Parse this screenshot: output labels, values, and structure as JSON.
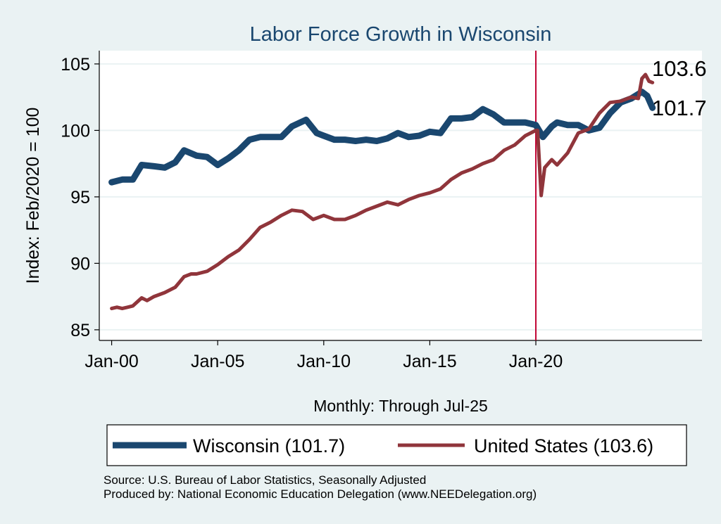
{
  "chart_data": {
    "type": "line",
    "title": "Labor Force Growth in Wisconsin",
    "xlabel": "Monthly: Through Jul-25",
    "ylabel": "Index: Feb/2020 = 100",
    "ylim": [
      84.2,
      106
    ],
    "xlim": [
      "1999-06",
      "2027-11"
    ],
    "yticks": [
      85,
      90,
      95,
      100,
      105
    ],
    "xticks": [
      {
        "date": "2000-01",
        "label": "Jan-00"
      },
      {
        "date": "2005-01",
        "label": "Jan-05"
      },
      {
        "date": "2010-01",
        "label": "Jan-10"
      },
      {
        "date": "2015-01",
        "label": "Jan-15"
      },
      {
        "date": "2020-01",
        "label": "Jan-20"
      }
    ],
    "grid": true,
    "reference_line": {
      "date": "2020-01",
      "color": "#c10534"
    },
    "legend_placement": "bottom",
    "end_labels": [
      "103.6",
      "101.7"
    ],
    "series": [
      {
        "name": "Wisconsin (101.7)",
        "color": "#1a476f",
        "points": [
          [
            "2000-01",
            96.1
          ],
          [
            "2000-07",
            96.3
          ],
          [
            "2001-01",
            96.3
          ],
          [
            "2001-06",
            97.4
          ],
          [
            "2002-01",
            97.3
          ],
          [
            "2002-07",
            97.2
          ],
          [
            "2003-01",
            97.6
          ],
          [
            "2003-06",
            98.5
          ],
          [
            "2004-01",
            98.1
          ],
          [
            "2004-07",
            98.0
          ],
          [
            "2005-01",
            97.4
          ],
          [
            "2005-07",
            97.9
          ],
          [
            "2006-01",
            98.5
          ],
          [
            "2006-07",
            99.3
          ],
          [
            "2007-01",
            99.5
          ],
          [
            "2007-07",
            99.5
          ],
          [
            "2008-01",
            99.5
          ],
          [
            "2008-07",
            100.3
          ],
          [
            "2009-03",
            100.8
          ],
          [
            "2009-09",
            99.8
          ],
          [
            "2010-01",
            99.6
          ],
          [
            "2010-07",
            99.3
          ],
          [
            "2011-01",
            99.3
          ],
          [
            "2011-07",
            99.2
          ],
          [
            "2012-01",
            99.3
          ],
          [
            "2012-07",
            99.2
          ],
          [
            "2013-01",
            99.4
          ],
          [
            "2013-07",
            99.8
          ],
          [
            "2014-01",
            99.5
          ],
          [
            "2014-07",
            99.6
          ],
          [
            "2015-01",
            99.9
          ],
          [
            "2015-07",
            99.8
          ],
          [
            "2016-01",
            100.9
          ],
          [
            "2016-07",
            100.9
          ],
          [
            "2017-01",
            101.0
          ],
          [
            "2017-07",
            101.6
          ],
          [
            "2018-01",
            101.2
          ],
          [
            "2018-07",
            100.6
          ],
          [
            "2019-01",
            100.6
          ],
          [
            "2019-07",
            100.6
          ],
          [
            "2020-01",
            100.4
          ],
          [
            "2020-05",
            99.5
          ],
          [
            "2020-10",
            100.3
          ],
          [
            "2021-01",
            100.6
          ],
          [
            "2021-07",
            100.4
          ],
          [
            "2022-01",
            100.4
          ],
          [
            "2022-07",
            100.0
          ],
          [
            "2023-01",
            100.2
          ],
          [
            "2023-07",
            101.3
          ],
          [
            "2024-01",
            102.1
          ],
          [
            "2024-07",
            102.4
          ],
          [
            "2025-01",
            102.9
          ],
          [
            "2025-04",
            102.6
          ],
          [
            "2025-07",
            101.7
          ]
        ]
      },
      {
        "name": "United States (103.6)",
        "color": "#90353b",
        "points": [
          [
            "2000-01",
            86.6
          ],
          [
            "2000-04",
            86.7
          ],
          [
            "2000-07",
            86.6
          ],
          [
            "2000-10",
            86.7
          ],
          [
            "2001-01",
            86.8
          ],
          [
            "2001-06",
            87.4
          ],
          [
            "2001-09",
            87.2
          ],
          [
            "2002-01",
            87.5
          ],
          [
            "2002-07",
            87.8
          ],
          [
            "2003-01",
            88.2
          ],
          [
            "2003-06",
            89.0
          ],
          [
            "2003-10",
            89.2
          ],
          [
            "2004-01",
            89.2
          ],
          [
            "2004-07",
            89.4
          ],
          [
            "2005-01",
            89.9
          ],
          [
            "2005-07",
            90.5
          ],
          [
            "2006-01",
            91.0
          ],
          [
            "2006-07",
            91.8
          ],
          [
            "2007-01",
            92.7
          ],
          [
            "2007-07",
            93.1
          ],
          [
            "2008-01",
            93.6
          ],
          [
            "2008-07",
            94.0
          ],
          [
            "2009-01",
            93.9
          ],
          [
            "2009-07",
            93.3
          ],
          [
            "2010-01",
            93.6
          ],
          [
            "2010-07",
            93.3
          ],
          [
            "2011-01",
            93.3
          ],
          [
            "2011-07",
            93.6
          ],
          [
            "2012-01",
            94.0
          ],
          [
            "2012-07",
            94.3
          ],
          [
            "2013-01",
            94.6
          ],
          [
            "2013-07",
            94.4
          ],
          [
            "2014-01",
            94.8
          ],
          [
            "2014-07",
            95.1
          ],
          [
            "2015-01",
            95.3
          ],
          [
            "2015-07",
            95.6
          ],
          [
            "2016-01",
            96.3
          ],
          [
            "2016-07",
            96.8
          ],
          [
            "2017-01",
            97.1
          ],
          [
            "2017-07",
            97.5
          ],
          [
            "2018-01",
            97.8
          ],
          [
            "2018-07",
            98.5
          ],
          [
            "2019-01",
            98.9
          ],
          [
            "2019-07",
            99.6
          ],
          [
            "2020-01",
            100.0
          ],
          [
            "2020-02",
            100.0
          ],
          [
            "2020-04",
            95.1
          ],
          [
            "2020-06",
            97.2
          ],
          [
            "2020-10",
            97.8
          ],
          [
            "2021-01",
            97.4
          ],
          [
            "2021-07",
            98.3
          ],
          [
            "2022-01",
            99.8
          ],
          [
            "2022-07",
            100.1
          ],
          [
            "2023-01",
            101.3
          ],
          [
            "2023-07",
            102.1
          ],
          [
            "2024-01",
            102.2
          ],
          [
            "2024-07",
            102.5
          ],
          [
            "2024-11",
            102.4
          ],
          [
            "2025-01",
            103.9
          ],
          [
            "2025-03",
            104.2
          ],
          [
            "2025-05",
            103.7
          ],
          [
            "2025-07",
            103.6
          ]
        ]
      }
    ]
  },
  "footer": {
    "source": "Source: U.S. Bureau of Labor Statistics, Seasonally Adjusted",
    "produced_by": "Produced by: National Economic Education Delegation (www.NEEDelegation.org)"
  }
}
